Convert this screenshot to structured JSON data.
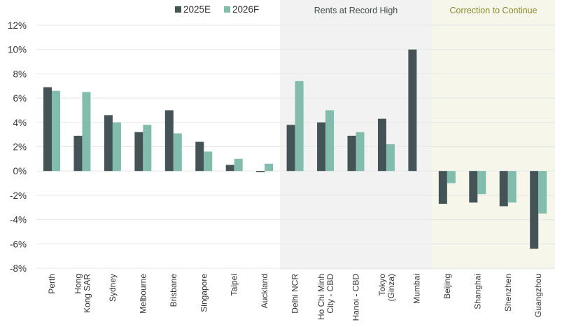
{
  "chart_data": {
    "type": "bar",
    "categories": [
      "Perth",
      "Hong Kong SAR",
      "Sydney",
      "Melbourne",
      "Brisbane",
      "Singapore",
      "Taipei",
      "Auckland",
      "Delhi NCR",
      "Ho Chi Minh City - CBD",
      "Hanoi - CBD",
      "Tokyo (Ginza)",
      "Mumbai",
      "Beijing",
      "Shanghai",
      "Shenzhen",
      "Guangzhou"
    ],
    "series": [
      {
        "name": "2025E",
        "color": "#435356",
        "values": [
          6.9,
          2.9,
          4.6,
          3.2,
          5.0,
          2.4,
          0.5,
          -0.1,
          3.8,
          4.0,
          2.9,
          4.3,
          10.0,
          -2.7,
          -2.6,
          -2.9,
          -6.4
        ]
      },
      {
        "name": "2026F",
        "color": "#82bcad",
        "values": [
          6.6,
          6.5,
          4.0,
          3.8,
          3.1,
          1.6,
          1.0,
          0.6,
          7.4,
          5.0,
          3.2,
          2.2,
          null,
          -1.0,
          -1.9,
          -2.6,
          -3.5
        ]
      }
    ],
    "ylim": [
      -8,
      12
    ],
    "yticks": [
      12,
      10,
      8,
      6,
      4,
      2,
      0,
      -2,
      -4,
      -6,
      -8
    ],
    "ytick_format": "%",
    "grid": true,
    "legend_placement": "top-center",
    "regions": [
      {
        "label": "Rents at Record High",
        "from": "Delhi NCR",
        "to": "Mumbai",
        "background": "#f2f2f2",
        "label_color": "#44504f"
      },
      {
        "label": "Correction to Continue",
        "from": "Beijing",
        "to": "Guangzhou",
        "background": "#f6f6ea",
        "label_color": "#8a8a2e"
      }
    ]
  }
}
